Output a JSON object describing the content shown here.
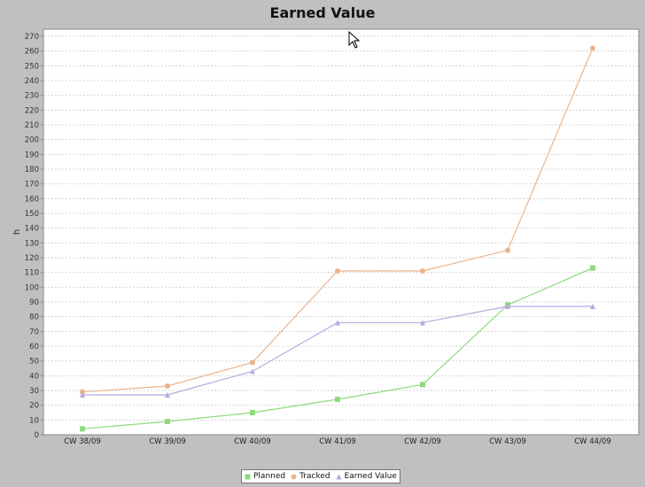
{
  "chart_data": {
    "type": "line",
    "title": "Earned Value",
    "xlabel": "",
    "ylabel": "h",
    "categories": [
      "CW 38/09",
      "CW 39/09",
      "CW 40/09",
      "CW 41/09",
      "CW 42/09",
      "CW 43/09",
      "CW 44/09"
    ],
    "series": [
      {
        "name": "Planned",
        "color": "#8fd97f",
        "marker": "square",
        "values": [
          4,
          9,
          15,
          24,
          34,
          88,
          113
        ]
      },
      {
        "name": "Tracked",
        "color": "#eab48e",
        "marker": "circle",
        "values": [
          29,
          33,
          49,
          111,
          111,
          125,
          262
        ]
      },
      {
        "name": "Earned Value",
        "color": "#b9a8e0",
        "marker": "triangle",
        "values": [
          27,
          27,
          43,
          76,
          76,
          87,
          87
        ]
      }
    ],
    "ylim": [
      0,
      270
    ],
    "yticks": [
      0,
      10,
      20,
      30,
      40,
      50,
      60,
      70,
      80,
      90,
      100,
      110,
      120,
      130,
      140,
      150,
      160,
      170,
      180,
      190,
      200,
      210,
      220,
      230,
      240,
      250,
      260,
      270
    ],
    "grid": true,
    "legend_position": "bottom"
  },
  "legend": {
    "items": [
      "Planned",
      "Tracked",
      "Earned Value"
    ]
  }
}
